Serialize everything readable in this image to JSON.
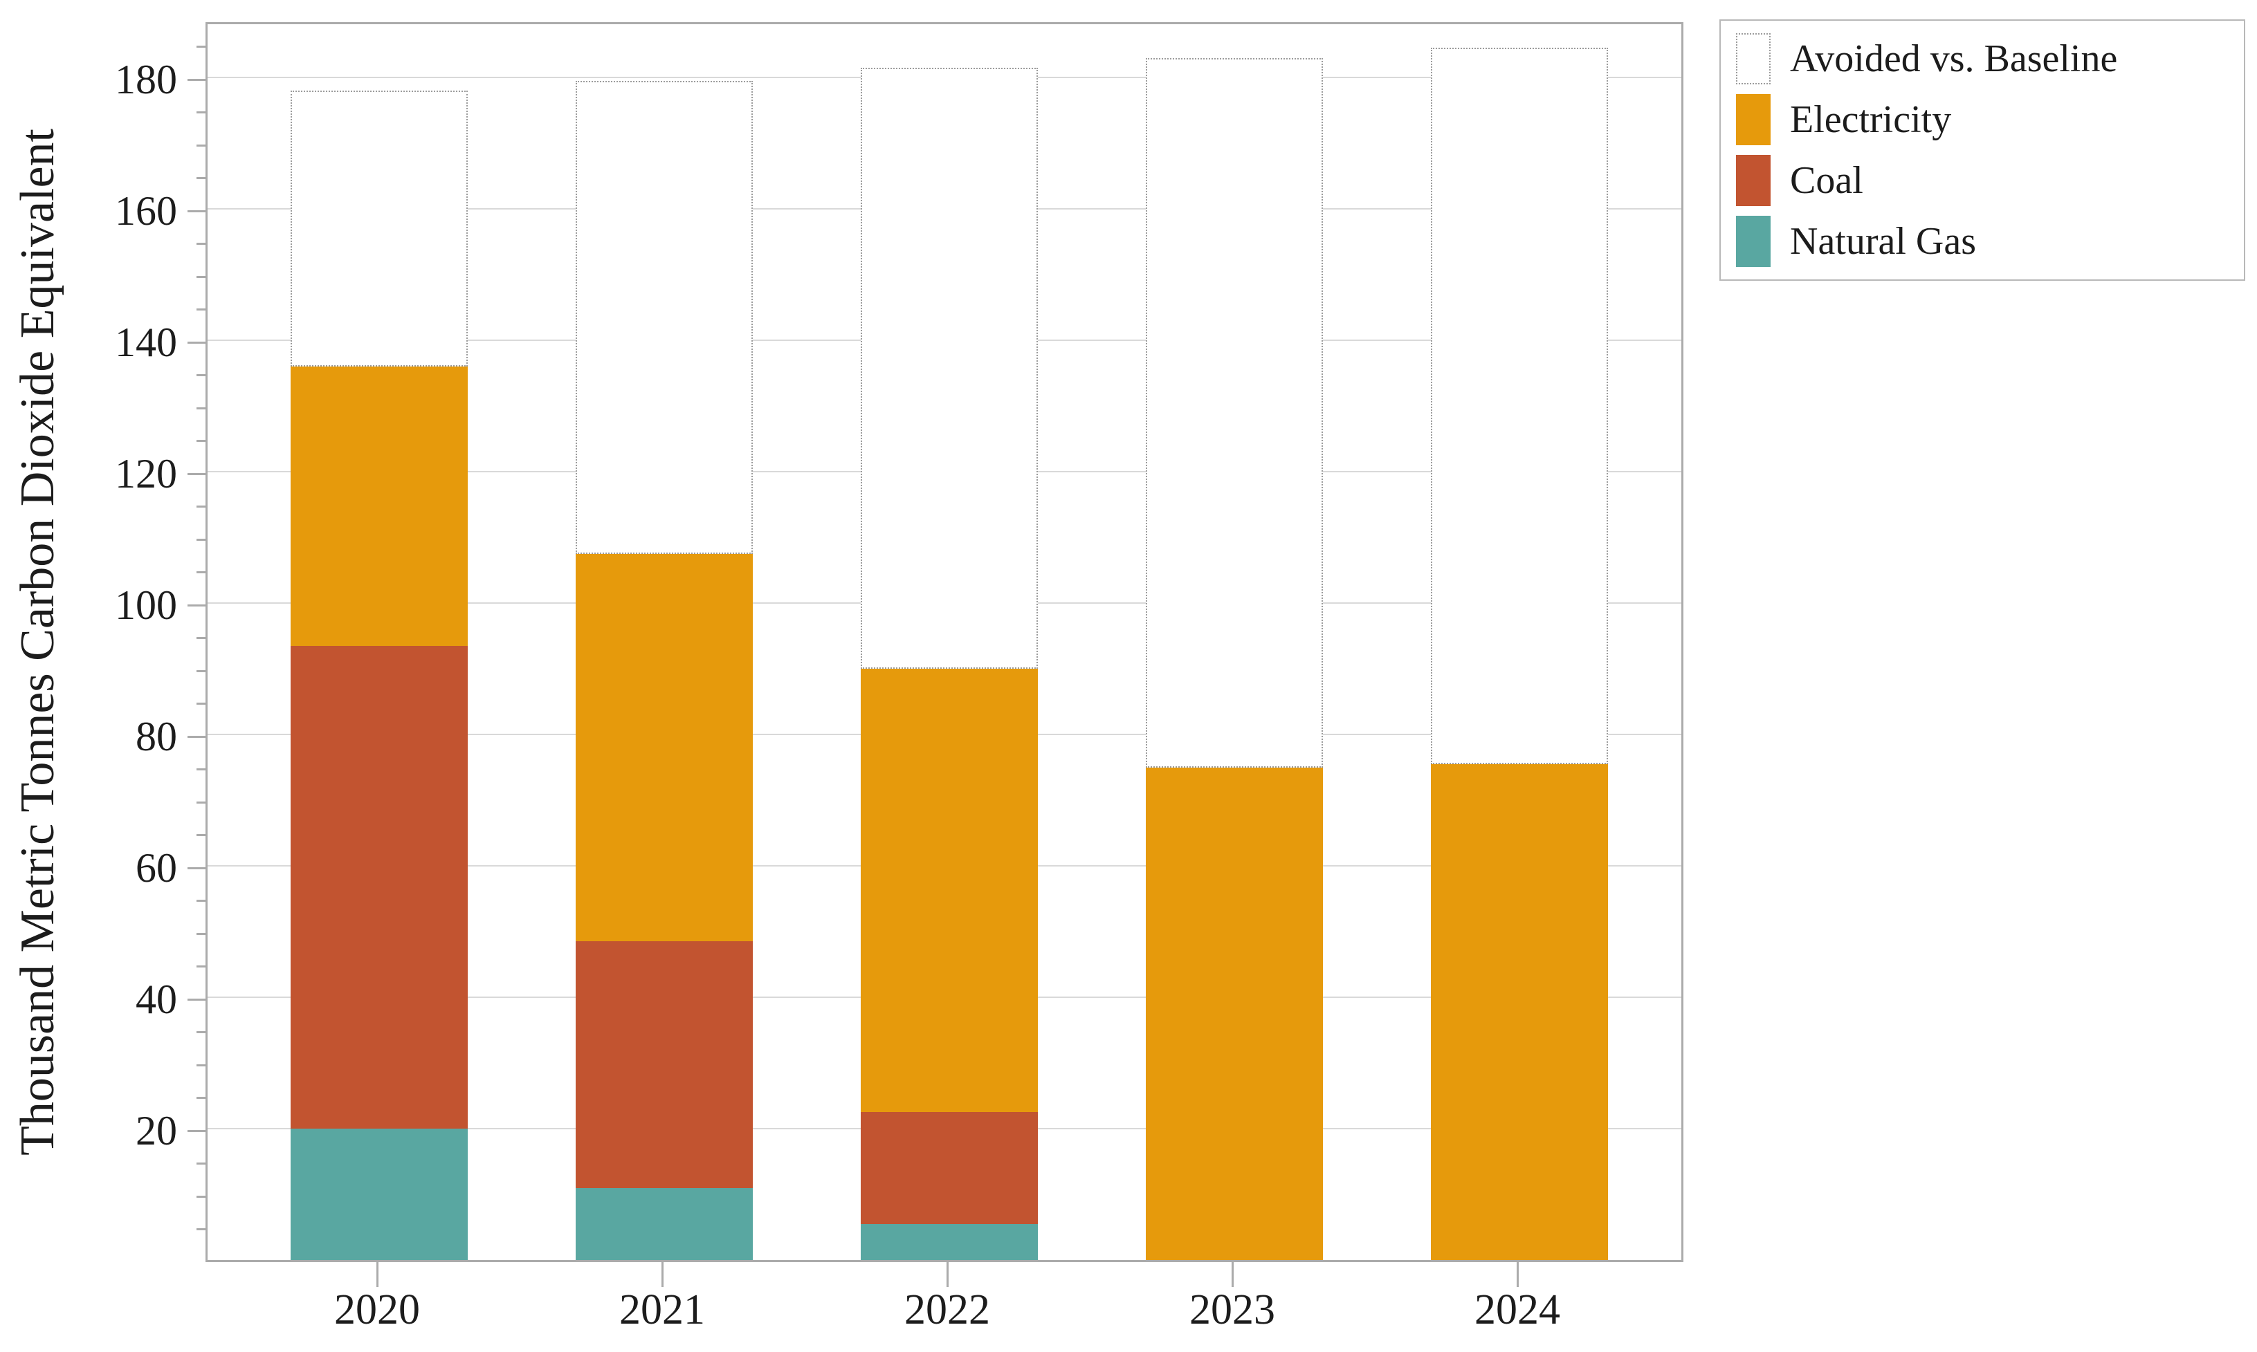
{
  "chart_data": {
    "type": "bar",
    "stacked": true,
    "title": "",
    "xlabel": "",
    "ylabel": "Thousand Metric Tonnes Carbon Dioxide Equivalent",
    "categories": [
      "2020",
      "2021",
      "2022",
      "2023",
      "2024"
    ],
    "series": [
      {
        "name": "Natural Gas",
        "color": "#59A7A1",
        "values": [
          20,
          11,
          5.5,
          0,
          0
        ]
      },
      {
        "name": "Coal",
        "color": "#C25430",
        "values": [
          73.5,
          37.5,
          17,
          0,
          0
        ]
      },
      {
        "name": "Electricity",
        "color": "#E69A0C",
        "values": [
          42.5,
          59,
          67.5,
          75,
          75.5
        ]
      },
      {
        "name": "Avoided vs. Baseline",
        "color": "#FFFFFF",
        "border_style": "dotted",
        "values": [
          42,
          72,
          91.5,
          108,
          109
        ]
      }
    ],
    "cumulative_tops": {
      "natural_gas_top": [
        20,
        11,
        5.5,
        0,
        0
      ],
      "coal_top": [
        93.5,
        48.5,
        22.5,
        0,
        0
      ],
      "electricity_top": [
        136,
        107.5,
        90,
        75,
        75.5
      ],
      "baseline_total": [
        178,
        179.5,
        181.5,
        183,
        184.5
      ]
    },
    "yticks": [
      20,
      40,
      60,
      80,
      100,
      120,
      140,
      160,
      180
    ],
    "minor_tick_step": 5,
    "ylim": [
      0,
      188.7
    ],
    "grid": "horizontal",
    "legend": {
      "position": "outside-top-right",
      "entries": [
        "Avoided vs. Baseline",
        "Electricity",
        "Coal",
        "Natural Gas"
      ]
    }
  },
  "colors": {
    "background": "#FFFFFF",
    "frame": "#ABABAB",
    "gridline": "#D9D9D9",
    "tick": "#ABABAB",
    "text": "#1C1C1C",
    "dotted_outline": "#9C9C9C",
    "electricity": "#E69A0C",
    "coal": "#C25430",
    "natural_gas": "#59A7A1"
  }
}
